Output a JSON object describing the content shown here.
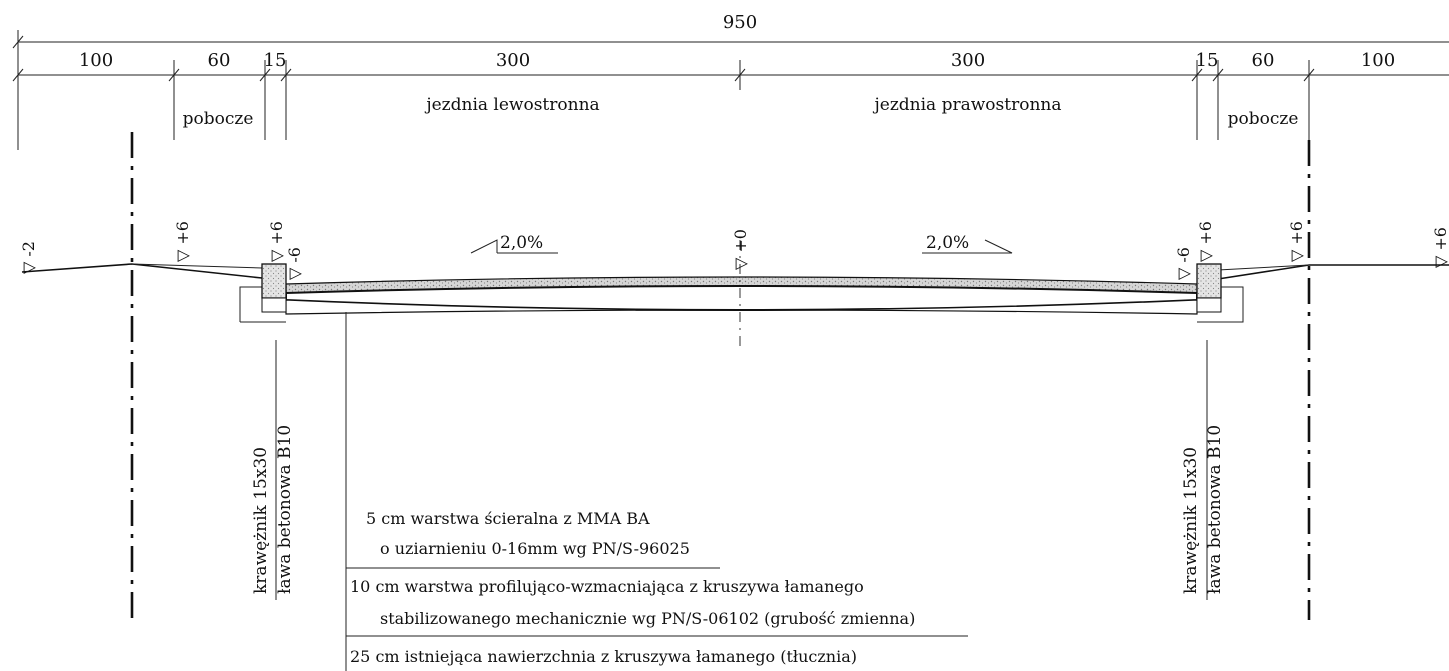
{
  "dimensions": {
    "total": "950",
    "segments": [
      "100",
      "60",
      "15",
      "300",
      "300",
      "15",
      "60",
      "100"
    ]
  },
  "zones": {
    "left_shoulder": "pobocze",
    "left_lane": "jezdnia lewostronna",
    "right_lane": "jezdnia prawostronna",
    "right_shoulder": "pobocze"
  },
  "slopes": {
    "left": "2,0%",
    "right": "2,0%"
  },
  "elevations": {
    "far_left": "-2",
    "left_shoulder": "+6",
    "left_curb_top": "+6",
    "left_curb_edge": "-6",
    "axis": "+0",
    "right_curb_edge": "-6",
    "right_curb_top": "+6",
    "right_shoulder": "+6",
    "far_right": "+6"
  },
  "curb_labels": {
    "curb": "krawężnik 15x30",
    "bench": "ława betonowa B10"
  },
  "layers": [
    {
      "line1": "5 cm warstwa ścieralna z MMA BA",
      "line2": "o uziarnieniu 0-16mm wg PN/S-96025"
    },
    {
      "line1": "10 cm warstwa profilująco-wzmacniająca z kruszywa łamanego",
      "line2": "stabilizowanego mechanicznie wg PN/S-06102 (grubość zmienna)"
    },
    {
      "line1": "25 cm istniejąca nawierzchnia z kruszywa łamanego (tłucznia)"
    }
  ]
}
